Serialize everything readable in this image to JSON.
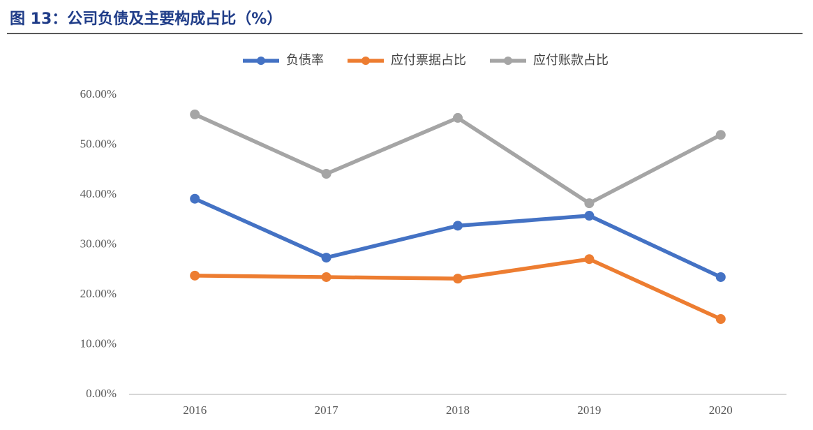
{
  "chart_data": {
    "type": "line",
    "title": "图 13：公司负债及主要构成占比（%）",
    "categories": [
      "2016",
      "2017",
      "2018",
      "2019",
      "2020"
    ],
    "series": [
      {
        "name": "负债率",
        "color": "#4472c4",
        "values": [
          39.2,
          27.4,
          33.8,
          35.8,
          23.5
        ]
      },
      {
        "name": "应付票据占比",
        "color": "#ed7d31",
        "values": [
          23.8,
          23.5,
          23.2,
          27.1,
          15.1
        ]
      },
      {
        "name": "应付账款占比",
        "color": "#a5a5a5",
        "values": [
          56.1,
          44.2,
          55.4,
          38.3,
          52.0
        ]
      }
    ],
    "ylim": [
      0,
      60
    ],
    "yticks": [
      {
        "value": 0,
        "label": "0.00%"
      },
      {
        "value": 10,
        "label": "10.00%"
      },
      {
        "value": 20,
        "label": "20.00%"
      },
      {
        "value": 30,
        "label": "30.00%"
      },
      {
        "value": 40,
        "label": "40.00%"
      },
      {
        "value": 50,
        "label": "50.00%"
      },
      {
        "value": 60,
        "label": "60.00%"
      }
    ],
    "grid": false,
    "legend": "top"
  }
}
